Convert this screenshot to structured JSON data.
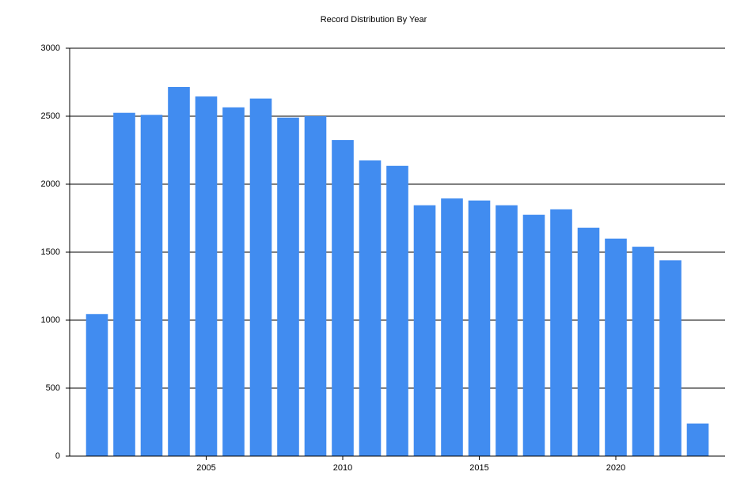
{
  "chart_data": {
    "type": "bar",
    "title": "Record Distribution By Year",
    "x": [
      2001,
      2002,
      2003,
      2004,
      2005,
      2006,
      2007,
      2008,
      2009,
      2010,
      2011,
      2012,
      2013,
      2014,
      2015,
      2016,
      2017,
      2018,
      2019,
      2020,
      2021,
      2022,
      2023
    ],
    "values": [
      1045,
      2525,
      2510,
      2715,
      2645,
      2565,
      2630,
      2490,
      2500,
      2325,
      2175,
      2135,
      1845,
      1895,
      1880,
      1845,
      1775,
      1815,
      1680,
      1600,
      1540,
      1440,
      240
    ],
    "color": "#418cf0",
    "xlim": [
      2000,
      2024
    ],
    "xticks": [
      2005,
      2010,
      2015,
      2020
    ],
    "ylim": [
      0,
      3000
    ],
    "yticks": [
      0,
      500,
      1000,
      1500,
      2000,
      2500,
      3000
    ],
    "grid": true
  }
}
